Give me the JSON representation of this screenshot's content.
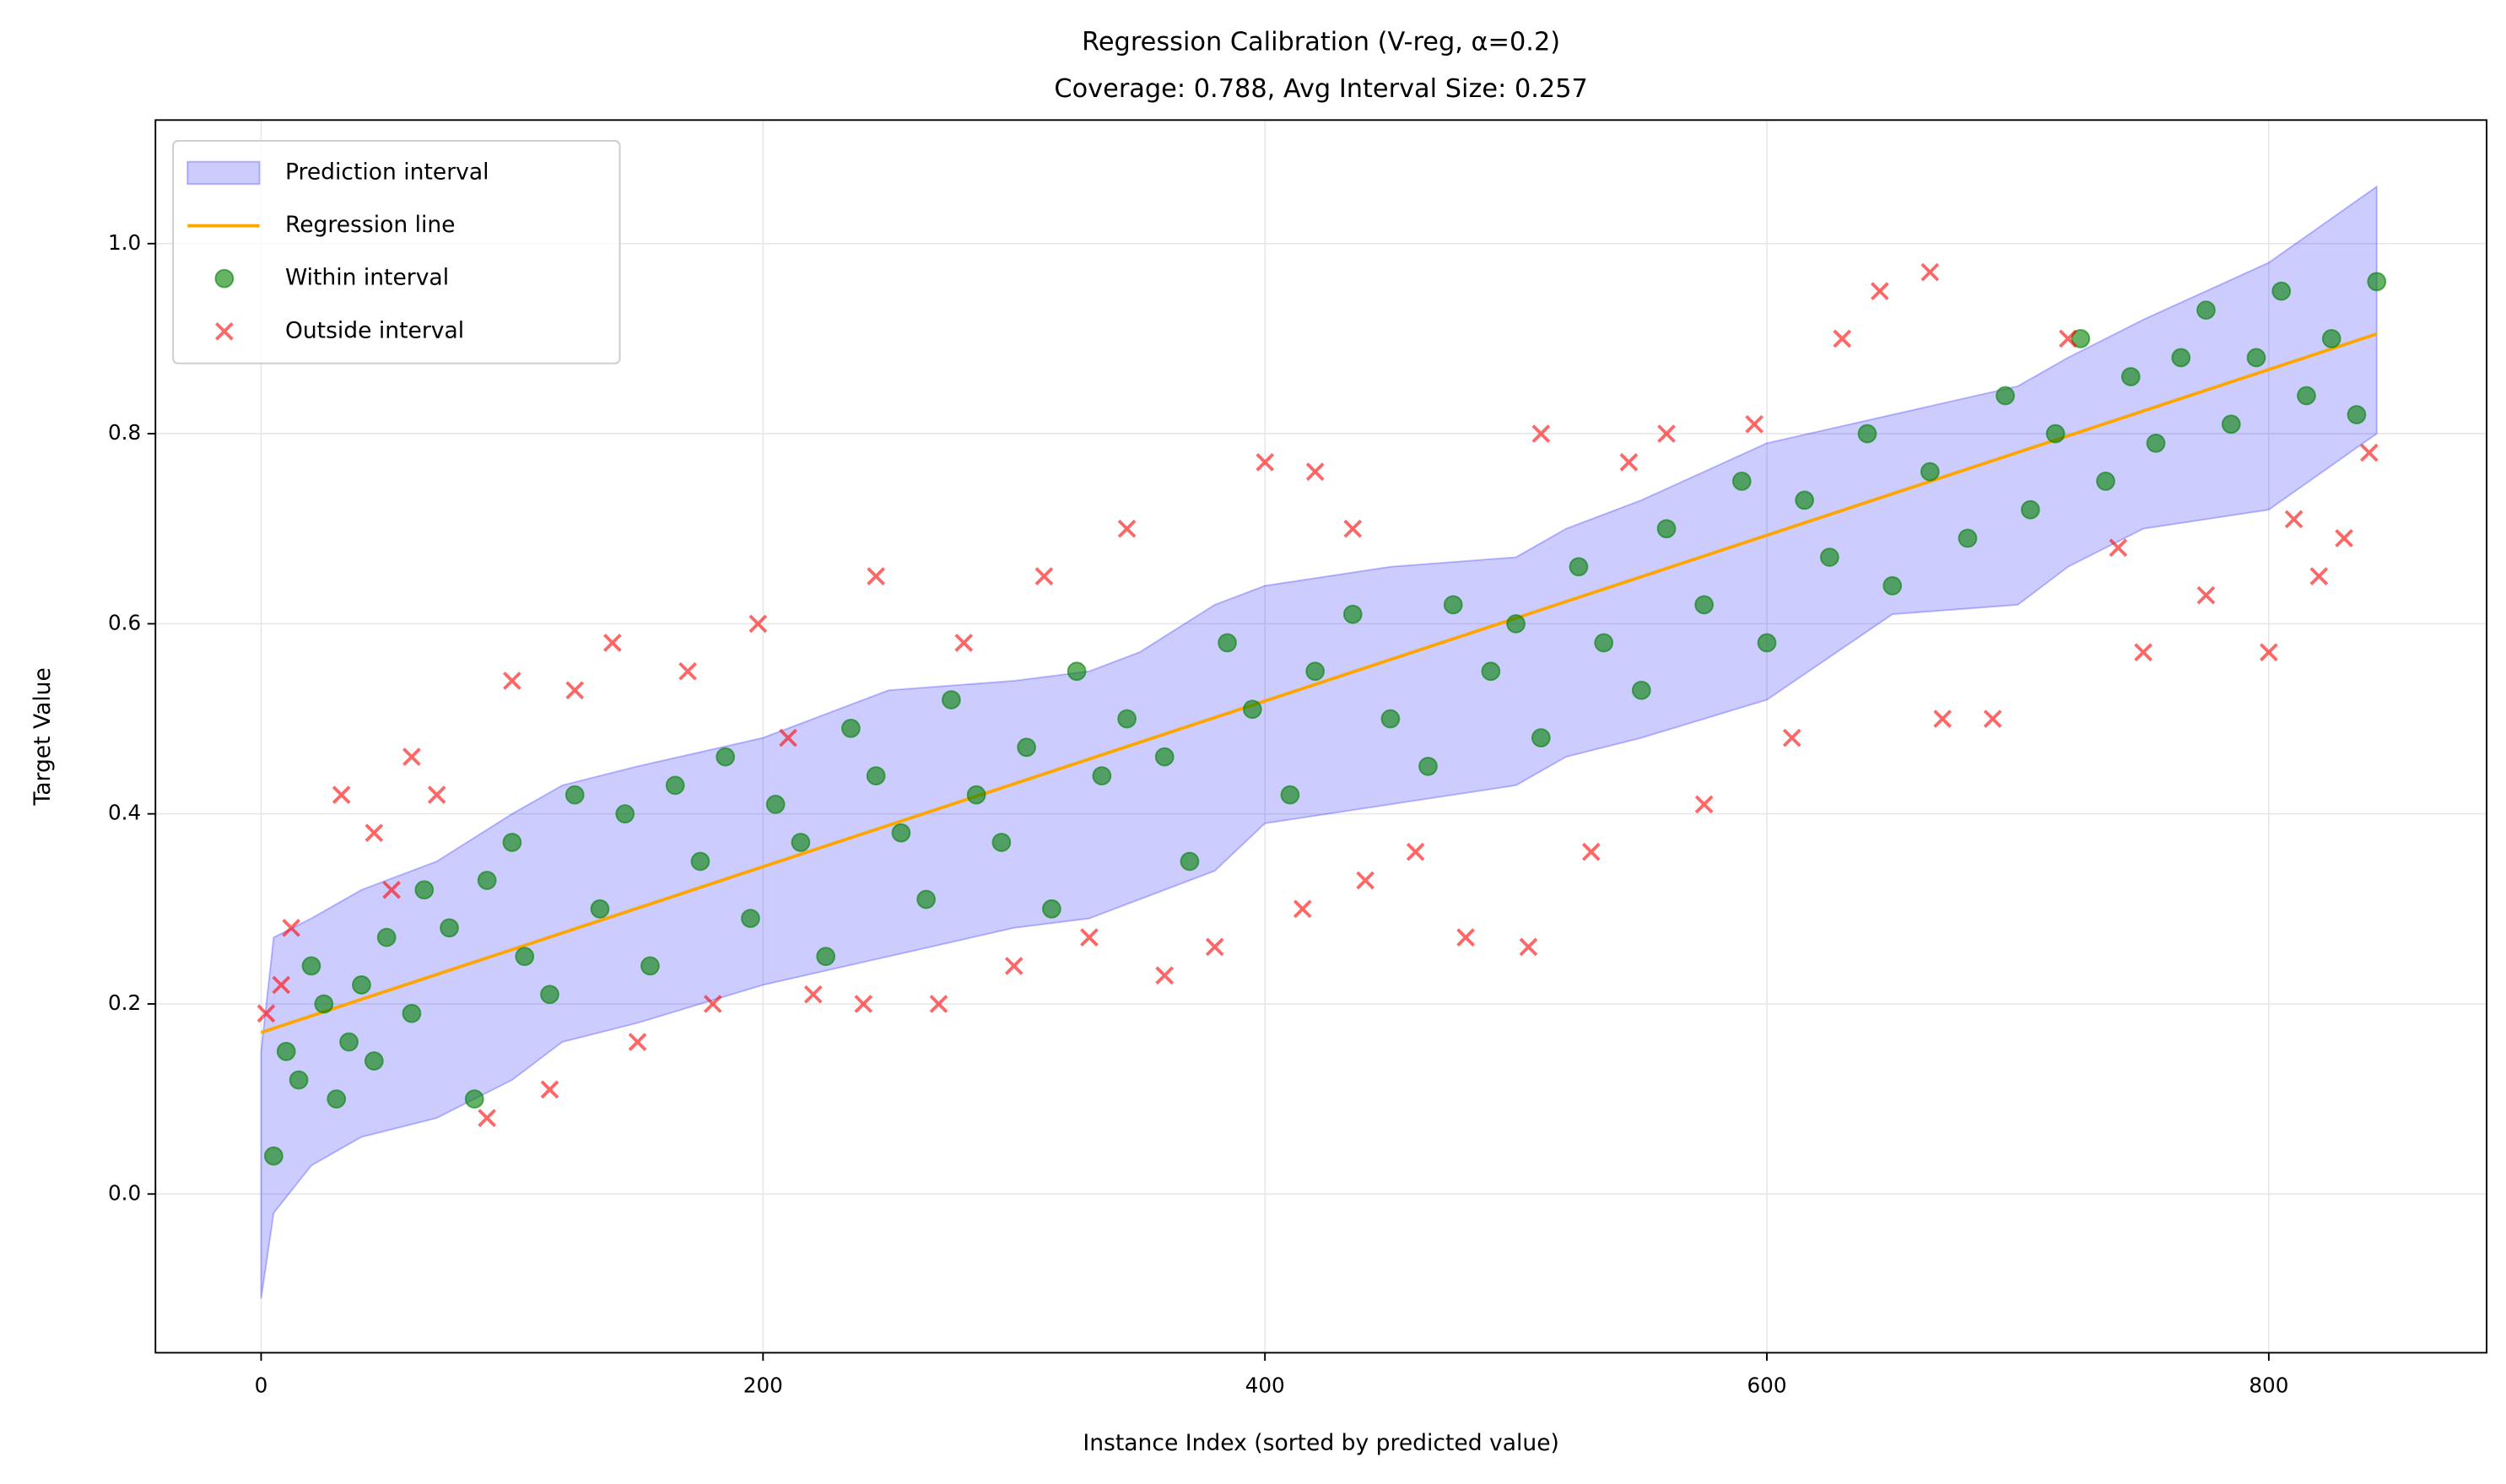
{
  "chart_data": {
    "type": "scatter",
    "title": "Regression Calibration (V-reg, α=0.2)",
    "subtitle": "Coverage: 0.788, Avg Interval Size: 0.257",
    "xlabel": "Instance Index (sorted by predicted value)",
    "ylabel": "Target Value",
    "xlim": [
      -42.1,
      886.8
    ],
    "ylim": [
      -0.167,
      1.13
    ],
    "xticks": [
      0,
      200,
      400,
      600,
      800
    ],
    "yticks": [
      {
        "value": 0,
        "label": "0.0"
      },
      0.2,
      0.4,
      0.6,
      0.8,
      {
        "value": 1,
        "label": "1.0"
      }
    ],
    "grid": true,
    "legend": "upper left",
    "series": [
      {
        "name": "Prediction interval",
        "type": "band",
        "color": "#0000ff",
        "x": [
          0,
          5,
          20,
          40,
          70,
          100,
          120,
          150,
          200,
          250,
          300,
          330,
          350,
          380,
          400,
          450,
          500,
          520,
          550,
          600,
          650,
          700,
          720,
          750,
          800,
          843
        ],
        "lower": [
          -0.11,
          -0.02,
          0.03,
          0.06,
          0.08,
          0.12,
          0.16,
          0.18,
          0.22,
          0.25,
          0.28,
          0.29,
          0.31,
          0.34,
          0.39,
          0.41,
          0.43,
          0.46,
          0.48,
          0.52,
          0.61,
          0.62,
          0.66,
          0.7,
          0.72,
          0.8
        ],
        "upper": [
          0.15,
          0.27,
          0.29,
          0.32,
          0.35,
          0.4,
          0.43,
          0.45,
          0.48,
          0.53,
          0.54,
          0.55,
          0.57,
          0.62,
          0.64,
          0.66,
          0.67,
          0.7,
          0.73,
          0.79,
          0.82,
          0.85,
          0.88,
          0.92,
          0.98,
          1.06
        ]
      },
      {
        "name": "Regression line",
        "type": "line",
        "color": "#ffa500",
        "x": [
          0,
          843
        ],
        "values": [
          0.17,
          0.905
        ]
      },
      {
        "name": "Within interval",
        "type": "scatter",
        "color": "#008000",
        "x": [
          5,
          10,
          15,
          20,
          25,
          30,
          35,
          40,
          45,
          50,
          60,
          65,
          75,
          85,
          90,
          100,
          105,
          115,
          125,
          135,
          145,
          155,
          165,
          175,
          185,
          195,
          205,
          215,
          225,
          235,
          245,
          255,
          265,
          275,
          285,
          295,
          305,
          315,
          325,
          335,
          345,
          360,
          370,
          385,
          395,
          410,
          420,
          435,
          450,
          465,
          475,
          490,
          500,
          510,
          525,
          535,
          550,
          560,
          575,
          590,
          600,
          615,
          625,
          640,
          650,
          665,
          680,
          695,
          705,
          715,
          725,
          735,
          745,
          755,
          765,
          775,
          785,
          795,
          805,
          815,
          825,
          835,
          843
        ],
        "values": [
          0.04,
          0.15,
          0.12,
          0.24,
          0.2,
          0.1,
          0.16,
          0.22,
          0.14,
          0.27,
          0.19,
          0.32,
          0.28,
          0.1,
          0.33,
          0.37,
          0.25,
          0.21,
          0.42,
          0.3,
          0.4,
          0.24,
          0.43,
          0.35,
          0.46,
          0.29,
          0.41,
          0.37,
          0.25,
          0.49,
          0.44,
          0.38,
          0.31,
          0.52,
          0.42,
          0.37,
          0.47,
          0.3,
          0.55,
          0.44,
          0.5,
          0.46,
          0.35,
          0.58,
          0.51,
          0.42,
          0.55,
          0.61,
          0.5,
          0.45,
          0.62,
          0.55,
          0.6,
          0.48,
          0.66,
          0.58,
          0.53,
          0.7,
          0.62,
          0.75,
          0.58,
          0.73,
          0.67,
          0.8,
          0.64,
          0.76,
          0.69,
          0.84,
          0.72,
          0.8,
          0.9,
          0.75,
          0.86,
          0.79,
          0.88,
          0.93,
          0.81,
          0.88,
          0.95,
          0.84,
          0.9,
          0.82,
          0.96
        ]
      },
      {
        "name": "Outside interval",
        "type": "cross",
        "color": "#ff0000",
        "x": [
          2,
          8,
          12,
          32,
          45,
          52,
          60,
          70,
          90,
          100,
          115,
          125,
          140,
          150,
          170,
          180,
          198,
          210,
          220,
          240,
          245,
          270,
          280,
          300,
          312,
          330,
          345,
          360,
          380,
          400,
          415,
          420,
          435,
          440,
          460,
          480,
          505,
          510,
          530,
          545,
          560,
          575,
          595,
          610,
          630,
          645,
          665,
          670,
          690,
          720,
          740,
          750,
          775,
          800,
          810,
          820,
          830,
          840
        ],
        "values": [
          0.19,
          0.22,
          0.28,
          0.42,
          0.38,
          0.32,
          0.46,
          0.42,
          0.08,
          0.54,
          0.11,
          0.53,
          0.58,
          0.16,
          0.55,
          0.2,
          0.6,
          0.48,
          0.21,
          0.2,
          0.65,
          0.2,
          0.58,
          0.24,
          0.65,
          0.27,
          0.7,
          0.23,
          0.26,
          0.77,
          0.3,
          0.76,
          0.7,
          0.33,
          0.36,
          0.27,
          0.26,
          0.8,
          0.36,
          0.77,
          0.8,
          0.41,
          0.81,
          0.48,
          0.9,
          0.95,
          0.97,
          0.5,
          0.5,
          0.9,
          0.68,
          0.57,
          0.63,
          0.57,
          0.71,
          0.65,
          0.69,
          0.78
        ]
      }
    ]
  }
}
